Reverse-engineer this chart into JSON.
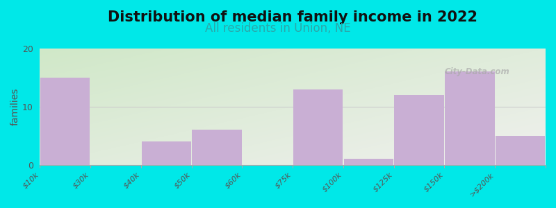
{
  "title": "Distribution of median family income in 2022",
  "subtitle": "All residents in Union, NE",
  "ylabel": "families",
  "categories": [
    "$10k",
    "$30k",
    "$40k",
    "$50k",
    "$60k",
    "$75k",
    "$100k",
    "$125k",
    "$150k",
    ">$200k"
  ],
  "values": [
    15,
    0,
    4,
    6,
    0,
    13,
    1,
    12,
    16,
    5
  ],
  "bar_color": "#c9afd4",
  "background_color": "#00e8e8",
  "gradient_top_left": "#d0e8c8",
  "gradient_bottom_right": "#f0f0ee",
  "ylim": [
    0,
    20
  ],
  "yticks": [
    0,
    10,
    20
  ],
  "title_fontsize": 15,
  "subtitle_fontsize": 12,
  "ylabel_fontsize": 10,
  "tick_label_fontsize": 8,
  "watermark": "City-Data.com"
}
